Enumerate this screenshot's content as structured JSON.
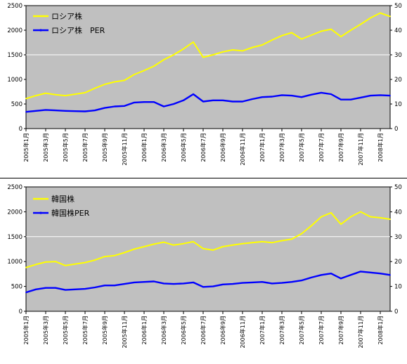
{
  "chart_data": [
    {
      "type": "line",
      "ylim_left": [
        0,
        2500
      ],
      "ylim_right": [
        0,
        50
      ],
      "yticks_left": [
        "0",
        "500",
        "1000",
        "1500",
        "2000",
        "2500"
      ],
      "yticks_right": [
        "0",
        "10",
        "20",
        "30",
        "40",
        "50"
      ],
      "xticks": [
        "2005年1月",
        "2005年3月",
        "2005年5月",
        "2005年7月",
        "2005年9月",
        "2005年11月",
        "2006年1月",
        "2006年3月",
        "2006年5月",
        "2006年7月",
        "2006年9月",
        "2006年11月",
        "2007年1月",
        "2007年3月",
        "2007年5月",
        "2007年7月",
        "2007年9月",
        "2007年11月",
        "2008年1月"
      ],
      "grid": "horizontal line at 1500",
      "legend_position": "top-left",
      "series": [
        {
          "name": "ロシア株",
          "axis": "left",
          "color": "#ffff00",
          "x": [
            0,
            1,
            2,
            3,
            4,
            5,
            6,
            7,
            8,
            9,
            10,
            11,
            12,
            13,
            14,
            15,
            16,
            17,
            18,
            19,
            20,
            21,
            22,
            23,
            24,
            25,
            26,
            27,
            28,
            29,
            30,
            31,
            32,
            33,
            34,
            35,
            36,
            37
          ],
          "values": [
            610,
            670,
            720,
            690,
            670,
            700,
            730,
            820,
            900,
            950,
            980,
            1100,
            1180,
            1270,
            1400,
            1500,
            1620,
            1760,
            1450,
            1500,
            1560,
            1600,
            1580,
            1650,
            1700,
            1800,
            1890,
            1950,
            1820,
            1900,
            1980,
            2020,
            1870,
            2000,
            2120,
            2250,
            2350,
            2280
          ]
        },
        {
          "name": "ロシア株　PER",
          "axis": "right",
          "color": "#0000ff",
          "x": [
            0,
            1,
            2,
            3,
            4,
            5,
            6,
            7,
            8,
            9,
            10,
            11,
            12,
            13,
            14,
            15,
            16,
            17,
            18,
            19,
            20,
            21,
            22,
            23,
            24,
            25,
            26,
            27,
            28,
            29,
            30,
            31,
            32,
            33,
            34,
            35,
            36,
            37
          ],
          "values": [
            6.8,
            7.2,
            7.6,
            7.4,
            7.2,
            7.1,
            7.0,
            7.4,
            8.4,
            9.0,
            9.2,
            10.6,
            10.8,
            10.8,
            9.0,
            10.0,
            11.5,
            14.0,
            11.0,
            11.5,
            11.5,
            11.0,
            11.0,
            12.0,
            12.8,
            13.0,
            13.6,
            13.4,
            12.8,
            13.8,
            14.6,
            14.0,
            11.8,
            11.8,
            12.6,
            13.4,
            13.6,
            13.4
          ]
        }
      ]
    },
    {
      "type": "line",
      "ylim_left": [
        0,
        2500
      ],
      "ylim_right": [
        0,
        50
      ],
      "yticks_left": [
        "0",
        "500",
        "1000",
        "1500",
        "2000",
        "2500"
      ],
      "yticks_right": [
        "0",
        "10",
        "20",
        "30",
        "40",
        "50"
      ],
      "xticks": [
        "2005年1月",
        "2005年3月",
        "2005年5月",
        "2005年7月",
        "2005年9月",
        "2005年11月",
        "2006年1月",
        "2006年3月",
        "2006年5月",
        "2006年7月",
        "2006年9月",
        "2006年11月",
        "2007年1月",
        "2007年3月",
        "2007年5月",
        "2007年7月",
        "2007年9月",
        "2007年11月",
        "2008年1月"
      ],
      "grid": "horizontal line at 1500",
      "legend_position": "top-left",
      "series": [
        {
          "name": "韓国株",
          "axis": "left",
          "color": "#ffff00",
          "x": [
            0,
            1,
            2,
            3,
            4,
            5,
            6,
            7,
            8,
            9,
            10,
            11,
            12,
            13,
            14,
            15,
            16,
            17,
            18,
            19,
            20,
            21,
            22,
            23,
            24,
            25,
            26,
            27,
            28,
            29,
            30,
            31,
            32,
            33,
            34,
            35,
            36,
            37
          ],
          "values": [
            880,
            940,
            990,
            1000,
            920,
            950,
            980,
            1030,
            1100,
            1120,
            1180,
            1250,
            1300,
            1350,
            1390,
            1330,
            1360,
            1400,
            1260,
            1230,
            1300,
            1330,
            1360,
            1380,
            1400,
            1380,
            1420,
            1450,
            1560,
            1720,
            1900,
            1980,
            1750,
            1900,
            2000,
            1900,
            1880,
            1850
          ]
        },
        {
          "name": "韓国株PER",
          "axis": "right",
          "color": "#0000ff",
          "x": [
            0,
            1,
            2,
            3,
            4,
            5,
            6,
            7,
            8,
            9,
            10,
            11,
            12,
            13,
            14,
            15,
            16,
            17,
            18,
            19,
            20,
            21,
            22,
            23,
            24,
            25,
            26,
            27,
            28,
            29,
            30,
            31,
            32,
            33,
            34,
            35,
            36,
            37
          ],
          "values": [
            7.6,
            8.8,
            9.4,
            9.4,
            8.6,
            8.8,
            9.0,
            9.6,
            10.4,
            10.4,
            11.0,
            11.6,
            11.8,
            12.0,
            11.2,
            11.0,
            11.2,
            11.6,
            9.8,
            10.0,
            10.8,
            11.0,
            11.4,
            11.6,
            11.8,
            11.2,
            11.4,
            11.8,
            12.4,
            13.6,
            14.6,
            15.2,
            13.2,
            14.6,
            16.0,
            15.6,
            15.2,
            14.6
          ]
        }
      ]
    }
  ]
}
